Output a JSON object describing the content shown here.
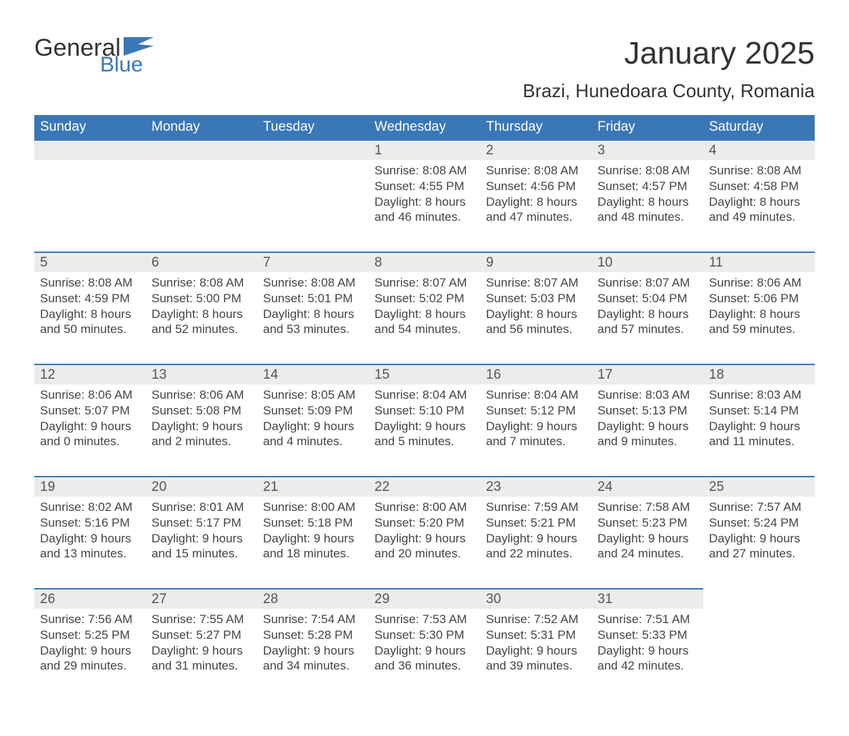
{
  "logo": {
    "general": "General",
    "blue": "Blue"
  },
  "title": "January 2025",
  "subtitle": "Brazi, Hunedoara County, Romania",
  "colors": {
    "header_bg": "#3a77b7",
    "header_text": "#ffffff",
    "daynum_bg": "#ececec",
    "border_top": "#3a77b7",
    "text": "#444444",
    "title_text": "#333333"
  },
  "typography": {
    "title_fontsize": 44,
    "subtitle_fontsize": 26,
    "header_fontsize": 19,
    "daynum_fontsize": 19,
    "body_fontsize": 17
  },
  "day_headers": [
    "Sunday",
    "Monday",
    "Tuesday",
    "Wednesday",
    "Thursday",
    "Friday",
    "Saturday"
  ],
  "weeks": [
    [
      null,
      null,
      null,
      {
        "num": "1",
        "sunrise": "8:08 AM",
        "sunset": "4:55 PM",
        "daylight": "8 hours and 46 minutes."
      },
      {
        "num": "2",
        "sunrise": "8:08 AM",
        "sunset": "4:56 PM",
        "daylight": "8 hours and 47 minutes."
      },
      {
        "num": "3",
        "sunrise": "8:08 AM",
        "sunset": "4:57 PM",
        "daylight": "8 hours and 48 minutes."
      },
      {
        "num": "4",
        "sunrise": "8:08 AM",
        "sunset": "4:58 PM",
        "daylight": "8 hours and 49 minutes."
      }
    ],
    [
      {
        "num": "5",
        "sunrise": "8:08 AM",
        "sunset": "4:59 PM",
        "daylight": "8 hours and 50 minutes."
      },
      {
        "num": "6",
        "sunrise": "8:08 AM",
        "sunset": "5:00 PM",
        "daylight": "8 hours and 52 minutes."
      },
      {
        "num": "7",
        "sunrise": "8:08 AM",
        "sunset": "5:01 PM",
        "daylight": "8 hours and 53 minutes."
      },
      {
        "num": "8",
        "sunrise": "8:07 AM",
        "sunset": "5:02 PM",
        "daylight": "8 hours and 54 minutes."
      },
      {
        "num": "9",
        "sunrise": "8:07 AM",
        "sunset": "5:03 PM",
        "daylight": "8 hours and 56 minutes."
      },
      {
        "num": "10",
        "sunrise": "8:07 AM",
        "sunset": "5:04 PM",
        "daylight": "8 hours and 57 minutes."
      },
      {
        "num": "11",
        "sunrise": "8:06 AM",
        "sunset": "5:06 PM",
        "daylight": "8 hours and 59 minutes."
      }
    ],
    [
      {
        "num": "12",
        "sunrise": "8:06 AM",
        "sunset": "5:07 PM",
        "daylight": "9 hours and 0 minutes."
      },
      {
        "num": "13",
        "sunrise": "8:06 AM",
        "sunset": "5:08 PM",
        "daylight": "9 hours and 2 minutes."
      },
      {
        "num": "14",
        "sunrise": "8:05 AM",
        "sunset": "5:09 PM",
        "daylight": "9 hours and 4 minutes."
      },
      {
        "num": "15",
        "sunrise": "8:04 AM",
        "sunset": "5:10 PM",
        "daylight": "9 hours and 5 minutes."
      },
      {
        "num": "16",
        "sunrise": "8:04 AM",
        "sunset": "5:12 PM",
        "daylight": "9 hours and 7 minutes."
      },
      {
        "num": "17",
        "sunrise": "8:03 AM",
        "sunset": "5:13 PM",
        "daylight": "9 hours and 9 minutes."
      },
      {
        "num": "18",
        "sunrise": "8:03 AM",
        "sunset": "5:14 PM",
        "daylight": "9 hours and 11 minutes."
      }
    ],
    [
      {
        "num": "19",
        "sunrise": "8:02 AM",
        "sunset": "5:16 PM",
        "daylight": "9 hours and 13 minutes."
      },
      {
        "num": "20",
        "sunrise": "8:01 AM",
        "sunset": "5:17 PM",
        "daylight": "9 hours and 15 minutes."
      },
      {
        "num": "21",
        "sunrise": "8:00 AM",
        "sunset": "5:18 PM",
        "daylight": "9 hours and 18 minutes."
      },
      {
        "num": "22",
        "sunrise": "8:00 AM",
        "sunset": "5:20 PM",
        "daylight": "9 hours and 20 minutes."
      },
      {
        "num": "23",
        "sunrise": "7:59 AM",
        "sunset": "5:21 PM",
        "daylight": "9 hours and 22 minutes."
      },
      {
        "num": "24",
        "sunrise": "7:58 AM",
        "sunset": "5:23 PM",
        "daylight": "9 hours and 24 minutes."
      },
      {
        "num": "25",
        "sunrise": "7:57 AM",
        "sunset": "5:24 PM",
        "daylight": "9 hours and 27 minutes."
      }
    ],
    [
      {
        "num": "26",
        "sunrise": "7:56 AM",
        "sunset": "5:25 PM",
        "daylight": "9 hours and 29 minutes."
      },
      {
        "num": "27",
        "sunrise": "7:55 AM",
        "sunset": "5:27 PM",
        "daylight": "9 hours and 31 minutes."
      },
      {
        "num": "28",
        "sunrise": "7:54 AM",
        "sunset": "5:28 PM",
        "daylight": "9 hours and 34 minutes."
      },
      {
        "num": "29",
        "sunrise": "7:53 AM",
        "sunset": "5:30 PM",
        "daylight": "9 hours and 36 minutes."
      },
      {
        "num": "30",
        "sunrise": "7:52 AM",
        "sunset": "5:31 PM",
        "daylight": "9 hours and 39 minutes."
      },
      {
        "num": "31",
        "sunrise": "7:51 AM",
        "sunset": "5:33 PM",
        "daylight": "9 hours and 42 minutes."
      },
      null
    ]
  ],
  "labels": {
    "sunrise": "Sunrise: ",
    "sunset": "Sunset: ",
    "daylight": "Daylight: "
  }
}
